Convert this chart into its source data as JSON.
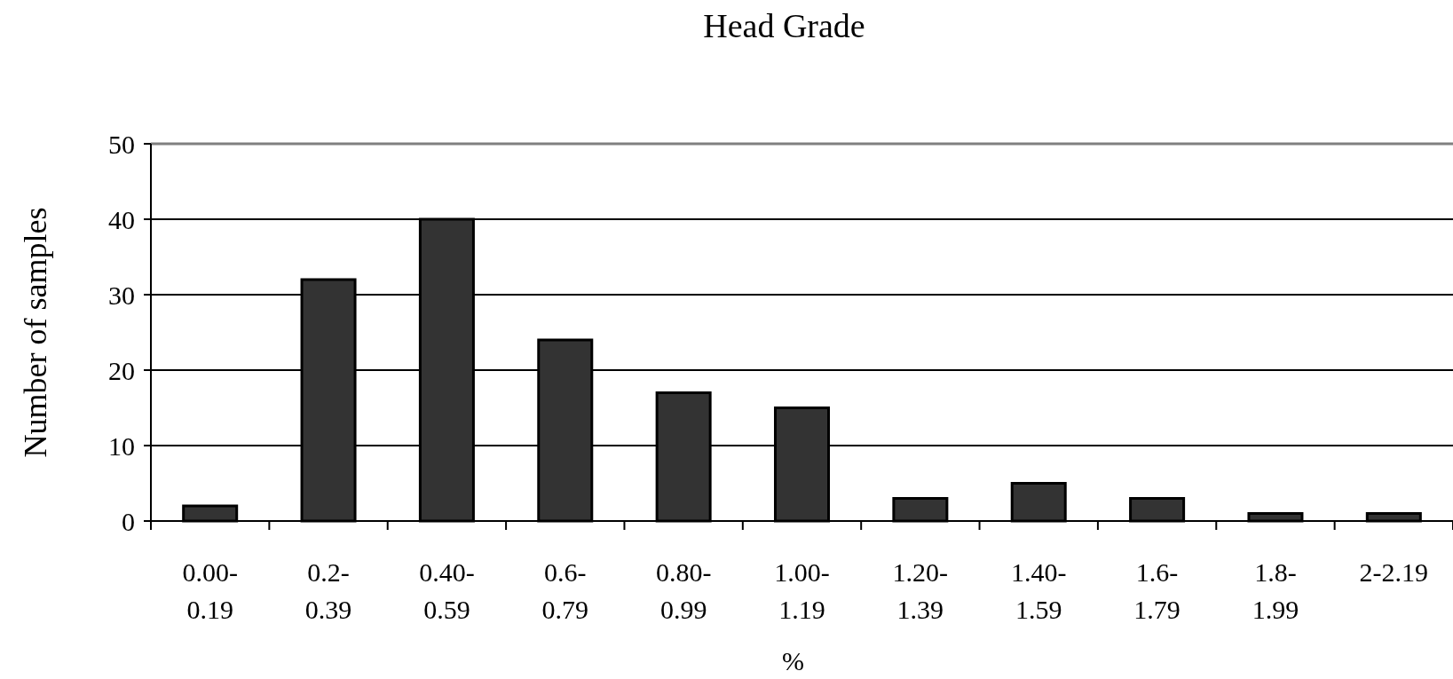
{
  "chart_data": {
    "type": "bar",
    "title": "Head Grade",
    "xlabel": "%",
    "ylabel": "Number of samples",
    "categories": [
      "0.00- 0.19",
      "0.2- 0.39",
      "0.40- 0.59",
      "0.6- 0.79",
      "0.80- 0.99",
      "1.00- 1.19",
      "1.20- 1.39",
      "1.40- 1.59",
      "1.6- 1.79",
      "1.8- 1.99",
      "2-2.19"
    ],
    "values": [
      2,
      32,
      40,
      24,
      17,
      15,
      3,
      5,
      3,
      1,
      1
    ],
    "color": "#333333",
    "ylim": [
      0,
      50
    ],
    "yticks": [
      0,
      10,
      20,
      30,
      40,
      50
    ],
    "grid": "y"
  }
}
